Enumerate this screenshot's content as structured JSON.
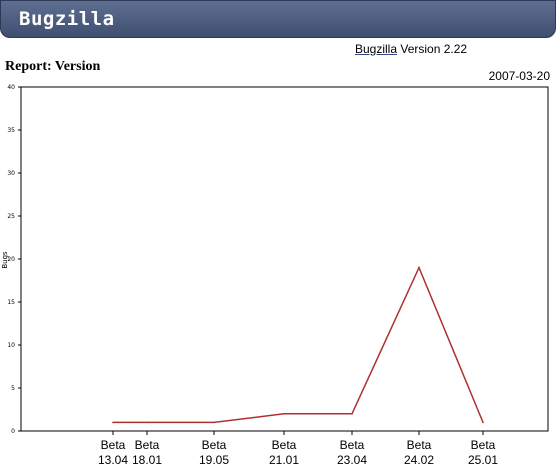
{
  "app": {
    "title": "Bugzilla"
  },
  "header": {
    "product_link": "Bugzilla",
    "version_text": "Version 2.22"
  },
  "report": {
    "title": "Report: Version",
    "date": "2007-03-20"
  },
  "colors": {
    "banner": "#4b5b7e",
    "line": "#b03030",
    "axis": "#000000"
  },
  "chart_data": {
    "type": "line",
    "title": "",
    "ylabel": "Bugs",
    "xlabel": "",
    "ylim": [
      0,
      40
    ],
    "yticks": [
      "0",
      "5",
      "10",
      "15",
      "20",
      "25",
      "30",
      "35",
      "40"
    ],
    "categories": [
      [
        "Beta",
        "13.04"
      ],
      [
        "Beta",
        "18.01"
      ],
      [
        "Beta",
        "19.05"
      ],
      [
        "Beta",
        "21.01"
      ],
      [
        "Beta",
        "23.04"
      ],
      [
        "Beta",
        "24.02"
      ],
      [
        "Beta",
        "25.01"
      ]
    ],
    "series": [
      {
        "values": [
          1,
          1,
          1,
          2,
          2,
          19,
          1
        ]
      }
    ]
  }
}
